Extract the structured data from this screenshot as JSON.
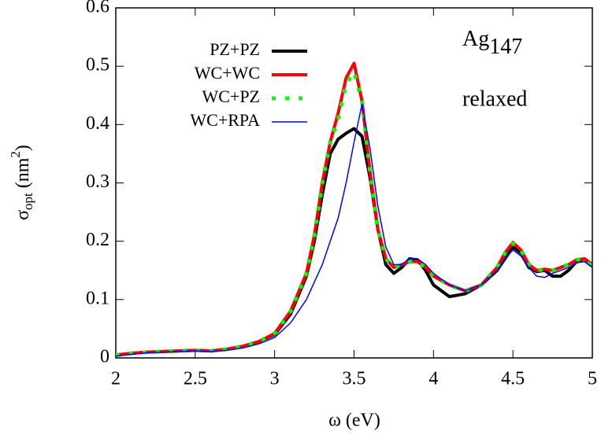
{
  "chart_data": {
    "type": "line",
    "x_label": "ω (eV)",
    "y_label": {
      "symbol": "σ",
      "sub": "opt",
      "unit": " (nm",
      "sup": "2",
      "close": ")"
    },
    "annotations": {
      "species": "Ag",
      "species_sub": "147",
      "state": "relaxed"
    },
    "x": [
      2.0,
      2.1,
      2.2,
      2.3,
      2.4,
      2.5,
      2.6,
      2.7,
      2.8,
      2.9,
      3.0,
      3.1,
      3.2,
      3.25,
      3.3,
      3.35,
      3.4,
      3.45,
      3.5,
      3.55,
      3.6,
      3.65,
      3.7,
      3.75,
      3.8,
      3.85,
      3.9,
      3.95,
      4.0,
      4.1,
      4.2,
      4.3,
      4.4,
      4.45,
      4.5,
      4.55,
      4.6,
      4.65,
      4.7,
      4.75,
      4.8,
      4.85,
      4.9,
      4.95,
      5.0
    ],
    "series": [
      {
        "name": "PZ+PZ",
        "color": "#000000",
        "line_width": 4,
        "style": "solid",
        "values": [
          0.005,
          0.008,
          0.01,
          0.011,
          0.012,
          0.013,
          0.012,
          0.015,
          0.02,
          0.028,
          0.04,
          0.075,
          0.14,
          0.2,
          0.28,
          0.35,
          0.375,
          0.385,
          0.393,
          0.38,
          0.31,
          0.22,
          0.16,
          0.145,
          0.155,
          0.17,
          0.168,
          0.15,
          0.125,
          0.105,
          0.11,
          0.125,
          0.15,
          0.17,
          0.19,
          0.18,
          0.155,
          0.148,
          0.15,
          0.14,
          0.14,
          0.15,
          0.165,
          0.17,
          0.16
        ]
      },
      {
        "name": "WC+WC",
        "color": "#ff0000",
        "line_width": 4,
        "style": "solid",
        "values": [
          0.005,
          0.008,
          0.01,
          0.011,
          0.012,
          0.013,
          0.012,
          0.015,
          0.02,
          0.028,
          0.042,
          0.08,
          0.145,
          0.21,
          0.3,
          0.37,
          0.42,
          0.48,
          0.505,
          0.44,
          0.32,
          0.22,
          0.17,
          0.155,
          0.16,
          0.165,
          0.165,
          0.155,
          0.14,
          0.125,
          0.115,
          0.125,
          0.155,
          0.18,
          0.198,
          0.185,
          0.16,
          0.15,
          0.152,
          0.15,
          0.155,
          0.16,
          0.168,
          0.17,
          0.158
        ]
      },
      {
        "name": "WC+PZ",
        "color": "#00ff00",
        "line_width": 5,
        "style": "dots",
        "values": [
          0.005,
          0.008,
          0.01,
          0.011,
          0.012,
          0.013,
          0.012,
          0.015,
          0.02,
          0.028,
          0.042,
          0.08,
          0.145,
          0.21,
          0.3,
          0.37,
          0.41,
          0.47,
          0.49,
          0.44,
          0.32,
          0.22,
          0.17,
          0.155,
          0.16,
          0.165,
          0.165,
          0.155,
          0.14,
          0.125,
          0.115,
          0.125,
          0.155,
          0.18,
          0.196,
          0.185,
          0.16,
          0.15,
          0.152,
          0.15,
          0.155,
          0.16,
          0.168,
          0.17,
          0.156
        ]
      },
      {
        "name": "WC+RPA",
        "color": "#0000ff",
        "line_width": 1.5,
        "style": "solid",
        "values": [
          0.003,
          0.006,
          0.009,
          0.01,
          0.011,
          0.012,
          0.011,
          0.013,
          0.017,
          0.024,
          0.035,
          0.06,
          0.1,
          0.13,
          0.16,
          0.2,
          0.24,
          0.3,
          0.37,
          0.435,
          0.36,
          0.26,
          0.19,
          0.16,
          0.16,
          0.17,
          0.17,
          0.16,
          0.145,
          0.125,
          0.115,
          0.125,
          0.15,
          0.17,
          0.185,
          0.175,
          0.155,
          0.14,
          0.138,
          0.145,
          0.15,
          0.155,
          0.163,
          0.165,
          0.155
        ]
      }
    ],
    "xlim": [
      2,
      5
    ],
    "ylim": [
      0,
      0.6
    ],
    "xticks": [
      2,
      2.5,
      3,
      3.5,
      4,
      4.5,
      5
    ],
    "yticks": [
      0,
      0.1,
      0.2,
      0.3,
      0.4,
      0.5,
      0.6
    ],
    "grid": false,
    "legend": "upper left"
  }
}
